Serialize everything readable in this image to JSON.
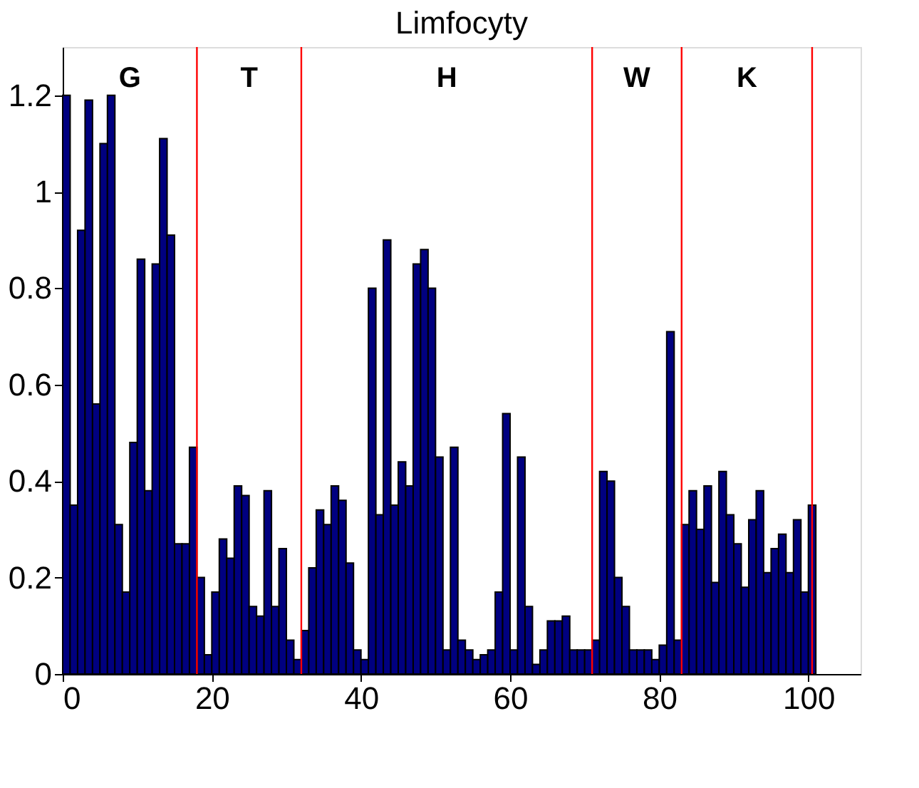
{
  "chart_data": {
    "type": "bar",
    "title": "Limfocyty",
    "x": [
      0.5,
      1.5,
      2.5,
      3.5,
      4.5,
      5.5,
      6.5,
      7.5,
      8.5,
      9.5,
      10.5,
      11.5,
      12.5,
      13.5,
      14.5,
      15.5,
      16.5,
      17.5,
      18.5,
      19.5,
      20.5,
      21.5,
      22.5,
      23.5,
      24.5,
      25.5,
      26.5,
      27.5,
      28.5,
      29.5,
      30.5,
      31.5,
      32.5,
      33.5,
      34.5,
      35.5,
      36.5,
      37.5,
      38.5,
      39.5,
      40.5,
      41.5,
      42.5,
      43.5,
      44.5,
      45.5,
      46.5,
      47.5,
      48.5,
      49.5,
      50.5,
      51.5,
      52.5,
      53.5,
      54.5,
      55.5,
      56.5,
      57.5,
      58.5,
      59.5,
      60.5,
      61.5,
      62.5,
      63.5,
      64.5,
      65.5,
      66.5,
      67.5,
      68.5,
      69.5,
      70.5,
      71.5,
      72.5,
      73.5,
      74.5,
      75.5,
      76.5,
      77.5,
      78.5,
      79.5,
      80.5,
      81.5,
      82.5,
      83.5,
      84.5,
      85.5,
      86.5,
      87.5,
      88.5,
      89.5,
      90.5,
      91.5,
      92.5,
      93.5,
      94.5,
      95.5,
      96.5,
      97.5,
      98.5,
      99.5,
      100.5
    ],
    "values": [
      1.2,
      0.35,
      0.92,
      1.19,
      0.56,
      1.1,
      1.2,
      0.31,
      0.17,
      0.48,
      0.86,
      0.38,
      0.85,
      1.11,
      0.91,
      0.27,
      0.27,
      0.47,
      0.2,
      0.04,
      0.17,
      0.28,
      0.24,
      0.39,
      0.37,
      0.14,
      0.12,
      0.38,
      0.14,
      0.26,
      0.07,
      0.03,
      0.09,
      0.22,
      0.34,
      0.31,
      0.39,
      0.36,
      0.23,
      0.05,
      0.03,
      0.8,
      0.33,
      0.9,
      0.35,
      0.44,
      0.39,
      0.85,
      0.88,
      0.8,
      0.45,
      0.05,
      0.47,
      0.07,
      0.05,
      0.03,
      0.04,
      0.05,
      0.17,
      0.54,
      0.05,
      0.45,
      0.14,
      0.02,
      0.05,
      0.11,
      0.11,
      0.12,
      0.05,
      0.05,
      0.05,
      0.07,
      0.42,
      0.4,
      0.2,
      0.14,
      0.05,
      0.05,
      0.05,
      0.03,
      0.06,
      0.71,
      0.07,
      0.31,
      0.38,
      0.3,
      0.39,
      0.19,
      0.42,
      0.33,
      0.27,
      0.18,
      0.32,
      0.38,
      0.21,
      0.26,
      0.29,
      0.21,
      0.32,
      0.17,
      0.35
    ],
    "color": "#000080",
    "xlim": [
      0,
      107
    ],
    "xticks": [
      0,
      20,
      40,
      60,
      80,
      100
    ],
    "ylim": [
      0,
      1.3
    ],
    "yticks": [
      0,
      0.2,
      0.4,
      0.6,
      0.8,
      {
        "value": 1,
        "label": "1"
      },
      1.2
    ],
    "ref_lines": [
      {
        "axis": "x",
        "value": 18,
        "color": "#ff0000"
      },
      {
        "axis": "x",
        "value": 32,
        "color": "#ff0000"
      },
      {
        "axis": "x",
        "value": 71,
        "color": "#ff0000"
      },
      {
        "axis": "x",
        "value": 83,
        "color": "#ff0000"
      },
      {
        "axis": "x",
        "value": 100.5,
        "color": "#ff0000"
      }
    ],
    "annotations": [
      "G",
      "T",
      "H",
      "W",
      "K"
    ],
    "xlabel": null
  }
}
